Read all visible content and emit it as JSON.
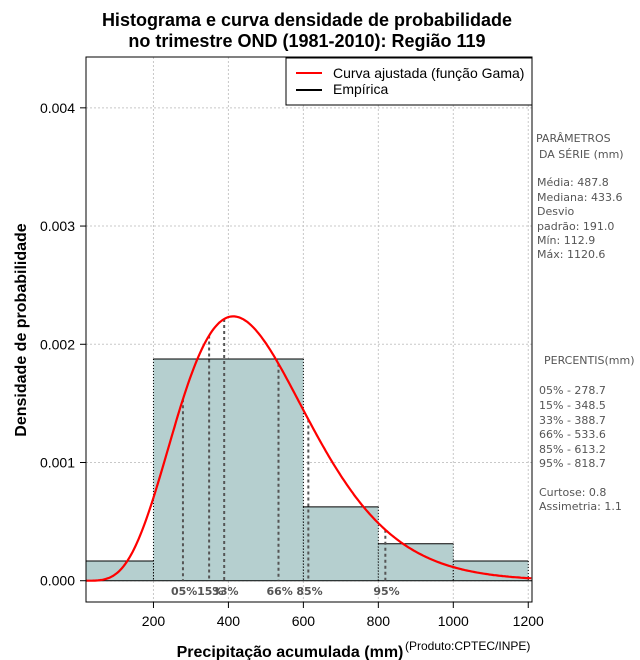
{
  "chart_data": {
    "type": "bar",
    "title_lines": [
      "Histograma e curva densidade de probabilidade",
      "no trimestre OND (1981-2010): Região 119"
    ],
    "xlabel": "Precipitação acumulada (mm)",
    "ylabel": "Densidade de probabilidade",
    "credit": "(Produto:CPTEC/INPE)",
    "xlim": [
      20,
      1210
    ],
    "ylim": [
      -0.00018,
      0.00443
    ],
    "xticks": [
      200,
      400,
      600,
      800,
      1000,
      1200
    ],
    "yticks": [
      0.0,
      0.001,
      0.002,
      0.003,
      0.004
    ],
    "ytick_labels": [
      "0.000",
      "0.001",
      "0.002",
      "0.003",
      "0.004"
    ],
    "grid": true,
    "histogram": {
      "bins": [
        [
          0,
          200
        ],
        [
          200,
          600
        ],
        [
          600,
          800
        ],
        [
          800,
          1000
        ],
        [
          1000,
          1200
        ]
      ],
      "densities": [
        0.000167,
        0.001875,
        0.000625,
        0.000313,
        0.000167
      ],
      "color": "#b5cfcf"
    },
    "gamma_fit": {
      "name": "Curva ajustada (função Gama)",
      "mean": 487.8,
      "sd": 191.0,
      "color": "#ff0000"
    },
    "legend": [
      {
        "label": "Curva ajustada (função Gama)",
        "color": "#ff0000"
      },
      {
        "label": "Empírica",
        "color": "#000000"
      }
    ],
    "percentiles": [
      {
        "label": "05%",
        "value": 278.7
      },
      {
        "label": "15%",
        "value": 348.5
      },
      {
        "label": "33%",
        "value": 388.7
      },
      {
        "label": "66%",
        "value": 533.6
      },
      {
        "label": "85%",
        "value": 613.2
      },
      {
        "label": "95%",
        "value": 818.7
      }
    ]
  },
  "side_panel": {
    "params_title_1": "PARÂMETROS",
    "params_title_2": "DA SÉRIE (mm)",
    "lines": [
      "Média:  487.8",
      "Mediana:  433.6",
      "Desvio",
      "padrão:  191.0",
      "Mín:  112.9",
      "Máx:  1120.6"
    ],
    "pct_title": "PERCENTIS(mm)",
    "pct_lines": [
      "05% -  278.7",
      "15% -  348.5",
      "33% -  388.7",
      "66% -  533.6",
      "85% -  613.2",
      "95% -  818.7"
    ],
    "stats_lines": [
      "Curtose:  0.8",
      "Assimetria:  1.1"
    ]
  }
}
